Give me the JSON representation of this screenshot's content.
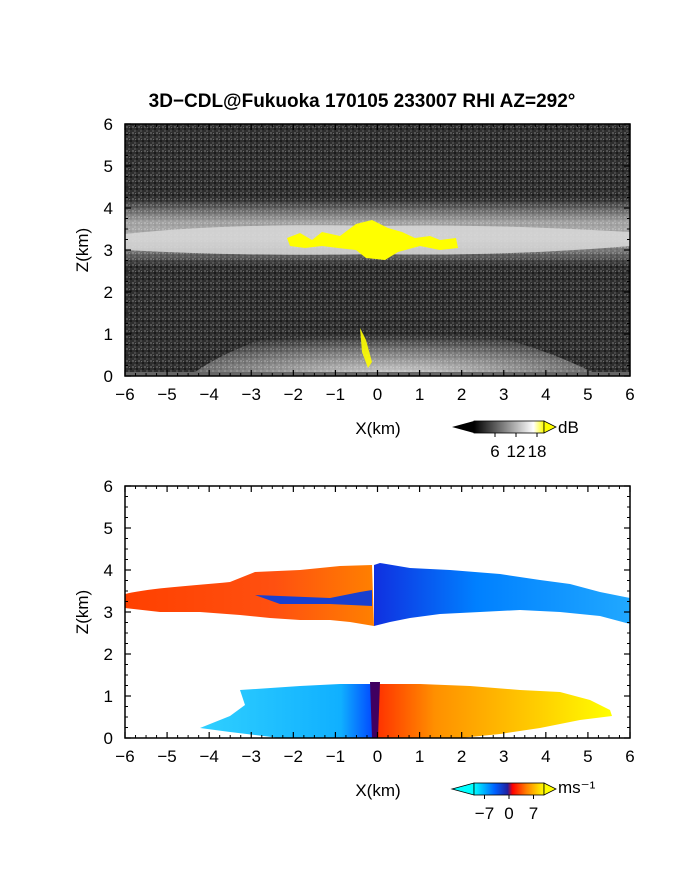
{
  "title": "3D−CDL@Fukuoka 170105 233007 RHI AZ=292°",
  "chart_data": [
    {
      "type": "heatmap",
      "panel": "reflectivity",
      "xlabel": "X(km)",
      "ylabel": "Z(km)",
      "xlim": [
        -6,
        6
      ],
      "ylim": [
        0,
        6
      ],
      "xticks": [
        "−6",
        "−5",
        "−4",
        "−3",
        "−2",
        "−1",
        "0",
        "1",
        "2",
        "3",
        "4",
        "5",
        "6"
      ],
      "yticks": [
        "0",
        "1",
        "2",
        "3",
        "4",
        "5",
        "6"
      ],
      "colorbar": {
        "unit": "dB",
        "ticks": [
          "6",
          "12",
          "18"
        ],
        "tick_values": [
          6,
          12,
          18
        ],
        "range": [
          0,
          20
        ],
        "colors": [
          "#000000",
          "#ffffff",
          "#ffff00"
        ]
      },
      "layers": [
        {
          "feature": "noise background",
          "x": [
            -6,
            6
          ],
          "z": [
            0,
            6
          ],
          "value_db": 2
        },
        {
          "feature": "upper echo layer",
          "x": [
            -6,
            6
          ],
          "z_base": 2.9,
          "z_top": 3.55,
          "peak_db": 14
        },
        {
          "feature": "saturated core",
          "x": [
            -2.1,
            1.9
          ],
          "z": [
            2.95,
            3.65
          ],
          "value_db": 19
        },
        {
          "feature": "low-level echo",
          "x": [
            -3.5,
            4.5
          ],
          "z": [
            0,
            1.2
          ],
          "peak_db": 13
        }
      ]
    },
    {
      "type": "heatmap",
      "panel": "doppler velocity",
      "xlabel": "X(km)",
      "ylabel": "Z(km)",
      "xlim": [
        -6,
        6
      ],
      "ylim": [
        0,
        6
      ],
      "xticks": [
        "−6",
        "−5",
        "−4",
        "−3",
        "−2",
        "−1",
        "0",
        "1",
        "2",
        "3",
        "4",
        "5",
        "6"
      ],
      "yticks": [
        "0",
        "1",
        "2",
        "3",
        "4",
        "5",
        "6"
      ],
      "colorbar": {
        "unit": "ms⁻¹",
        "ticks": [
          "−7",
          "0",
          "7"
        ],
        "tick_values": [
          -7,
          0,
          7
        ],
        "range": [
          -10,
          10
        ],
        "colors": [
          "#00ffff",
          "#0060ff",
          "#2020a0",
          "#ff0000",
          "#ff8000",
          "#ffff00"
        ]
      },
      "layers": [
        {
          "feature": "upper layer, receding side",
          "x": [
            -6,
            -0.1
          ],
          "z": [
            2.7,
            3.9
          ],
          "velocity": 6
        },
        {
          "feature": "upper layer, approaching side",
          "x": [
            -0.1,
            6
          ],
          "z": [
            2.6,
            4.1
          ],
          "velocity": -6
        },
        {
          "feature": "low layer, approaching side",
          "x": [
            -4.8,
            0
          ],
          "z": [
            0,
            1.2
          ],
          "velocity": -7
        },
        {
          "feature": "low layer, receding side",
          "x": [
            0,
            5.8
          ],
          "z": [
            0,
            1.3
          ],
          "velocity": 7
        }
      ]
    }
  ]
}
